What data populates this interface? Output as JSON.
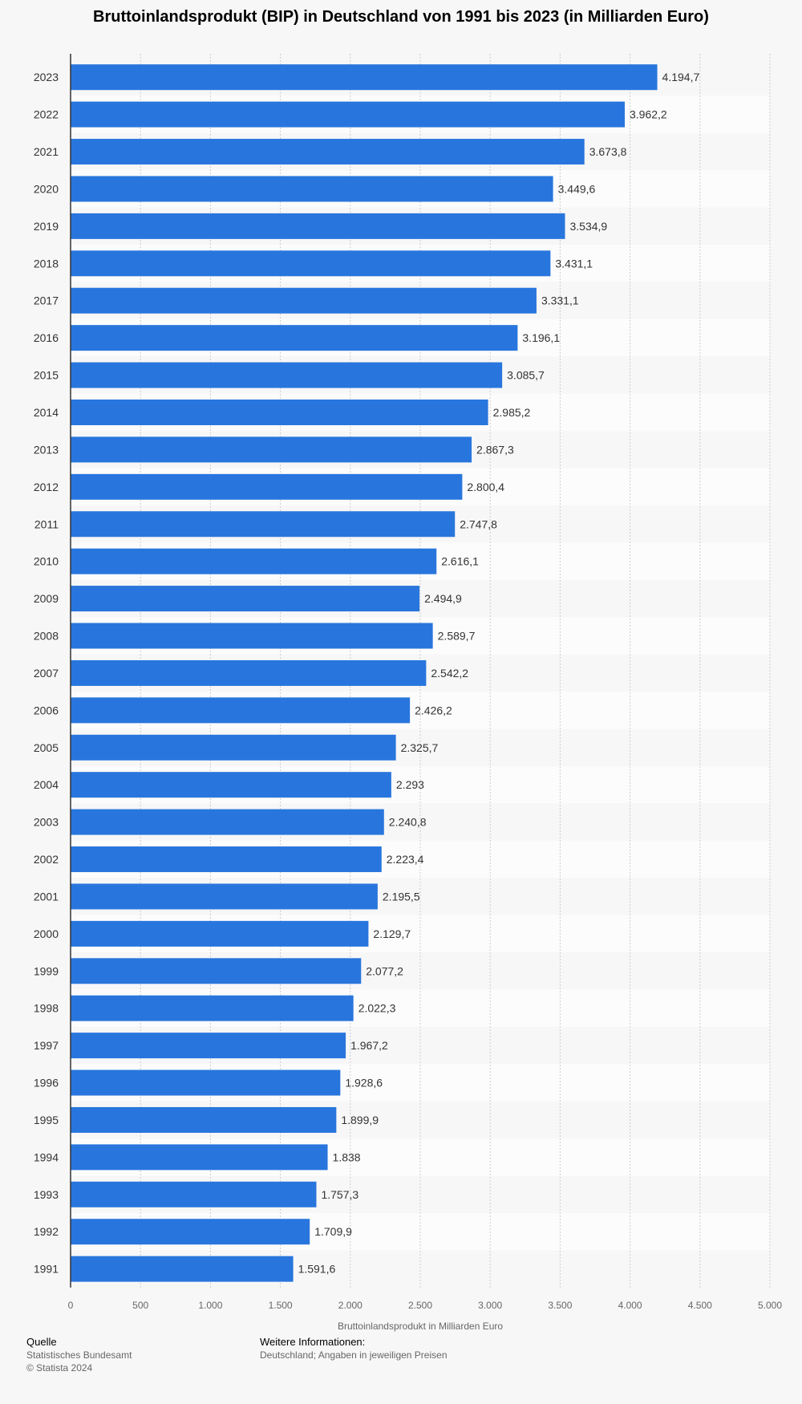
{
  "chart_data": {
    "type": "bar",
    "orientation": "horizontal",
    "title": "Bruttoinlandsprodukt (BIP) in Deutschland von 1991 bis 2023 (in Milliarden Euro)",
    "xlabel": "Bruttoinlandsprodukt in Milliarden Euro",
    "ylabel": "",
    "xlim": [
      0,
      5000
    ],
    "xticks": [
      0,
      500,
      1000,
      1500,
      2000,
      2500,
      3000,
      3500,
      4000,
      4500,
      5000
    ],
    "xtick_labels": [
      "0",
      "500",
      "1.000",
      "1.500",
      "2.000",
      "2.500",
      "3.000",
      "3.500",
      "4.000",
      "4.500",
      "5.000"
    ],
    "grid": true,
    "bar_color": "#2876dd",
    "categories": [
      "2023",
      "2022",
      "2021",
      "2020",
      "2019",
      "2018",
      "2017",
      "2016",
      "2015",
      "2014",
      "2013",
      "2012",
      "2011",
      "2010",
      "2009",
      "2008",
      "2007",
      "2006",
      "2005",
      "2004",
      "2003",
      "2002",
      "2001",
      "2000",
      "1999",
      "1998",
      "1997",
      "1996",
      "1995",
      "1994",
      "1993",
      "1992",
      "1991"
    ],
    "values": [
      4194.7,
      3962.2,
      3673.8,
      3449.6,
      3534.9,
      3431.1,
      3331.1,
      3196.1,
      3085.7,
      2985.2,
      2867.3,
      2800.4,
      2747.8,
      2616.1,
      2494.9,
      2589.7,
      2542.2,
      2426.2,
      2325.7,
      2293,
      2240.8,
      2223.4,
      2195.5,
      2129.7,
      2077.2,
      2022.3,
      1967.2,
      1928.6,
      1899.9,
      1838,
      1757.3,
      1709.9,
      1591.6
    ],
    "value_labels": [
      "4.194,7",
      "3.962,2",
      "3.673,8",
      "3.449,6",
      "3.534,9",
      "3.431,1",
      "3.331,1",
      "3.196,1",
      "3.085,7",
      "2.985,2",
      "2.867,3",
      "2.800,4",
      "2.747,8",
      "2.616,1",
      "2.494,9",
      "2.589,7",
      "2.542,2",
      "2.426,2",
      "2.325,7",
      "2.293",
      "2.240,8",
      "2.223,4",
      "2.195,5",
      "2.129,7",
      "2.077,2",
      "2.022,3",
      "1.967,2",
      "1.928,6",
      "1.899,9",
      "1.838",
      "1.757,3",
      "1.709,9",
      "1.591,6"
    ]
  },
  "footer": {
    "source_heading": "Quelle",
    "source_name": "Statistisches Bundesamt",
    "copyright": "© Statista 2024",
    "info_heading": "Weitere Informationen:",
    "info_text": "Deutschland; Angaben in jeweiligen Preisen"
  }
}
